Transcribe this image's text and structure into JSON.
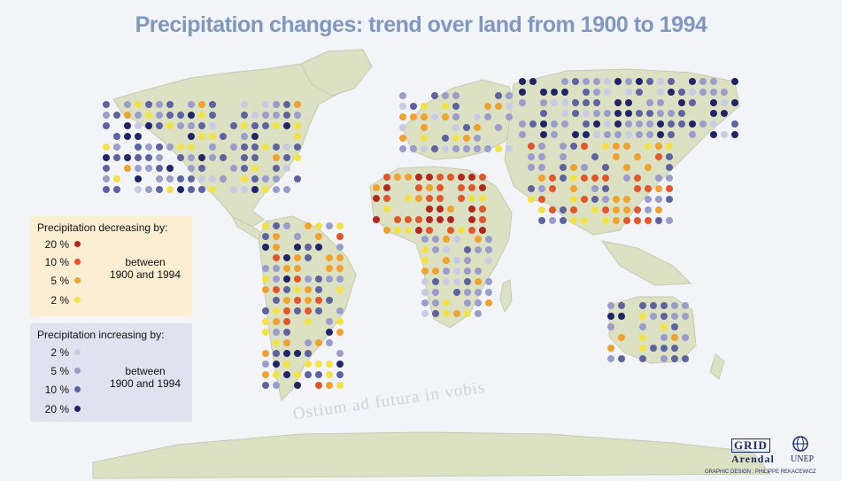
{
  "title": "Precipitation changes: trend over land from 1900 to 1994",
  "legend": {
    "decrease": {
      "title": "Precipitation decreasing by:",
      "note_line1": "between",
      "note_line2": "1900 and 1994",
      "items": [
        {
          "label": "20 %",
          "color": "#b0281c"
        },
        {
          "label": "10 %",
          "color": "#e0572c"
        },
        {
          "label": "5 %",
          "color": "#f0a22e"
        },
        {
          "label": "2 %",
          "color": "#f3e247"
        }
      ]
    },
    "increase": {
      "title": "Precipitation increasing by:",
      "note_line1": "between",
      "note_line2": "1900 and 1994",
      "items": [
        {
          "label": "2 %",
          "color": "#c9cbe4"
        },
        {
          "label": "5 %",
          "color": "#9a9dcb"
        },
        {
          "label": "10 %",
          "color": "#5d639f"
        },
        {
          "label": "20 %",
          "color": "#1f2566"
        }
      ]
    }
  },
  "branding": {
    "grid": "GRID",
    "arendal": "Arendal",
    "unep": "UNEP",
    "credit": "GRAPHIC DESIGN : PHILIPPE REKACEWICZ"
  },
  "watermark_text": "Ostium ad futura in vobis",
  "colors": {
    "land": "#dde1c4",
    "land_stroke": "#c3c8aa",
    "ocean": "#f3f4f8"
  }
}
